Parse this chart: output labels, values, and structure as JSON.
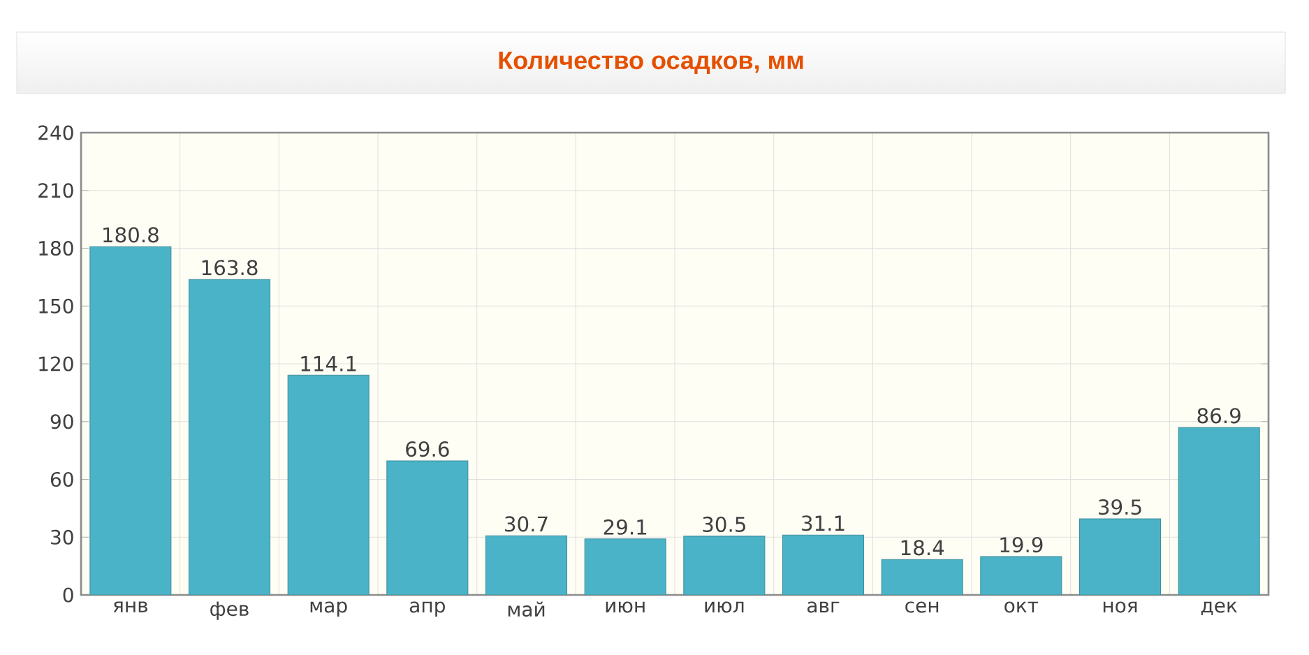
{
  "chart_data": {
    "type": "bar",
    "title": "Количество осадков, мм",
    "categories": [
      "янв",
      "фев",
      "мар",
      "апр",
      "май",
      "июн",
      "июл",
      "авг",
      "сен",
      "окт",
      "ноя",
      "дек"
    ],
    "values": [
      180.8,
      163.8,
      114.1,
      69.6,
      30.7,
      29.1,
      30.5,
      31.1,
      18.4,
      19.9,
      39.5,
      86.9
    ],
    "color": "#4bb3c7",
    "ylim": [
      0,
      240
    ],
    "yticks": [
      0,
      30,
      60,
      90,
      120,
      150,
      180,
      210,
      240
    ],
    "grid": true,
    "data_labels": true
  }
}
